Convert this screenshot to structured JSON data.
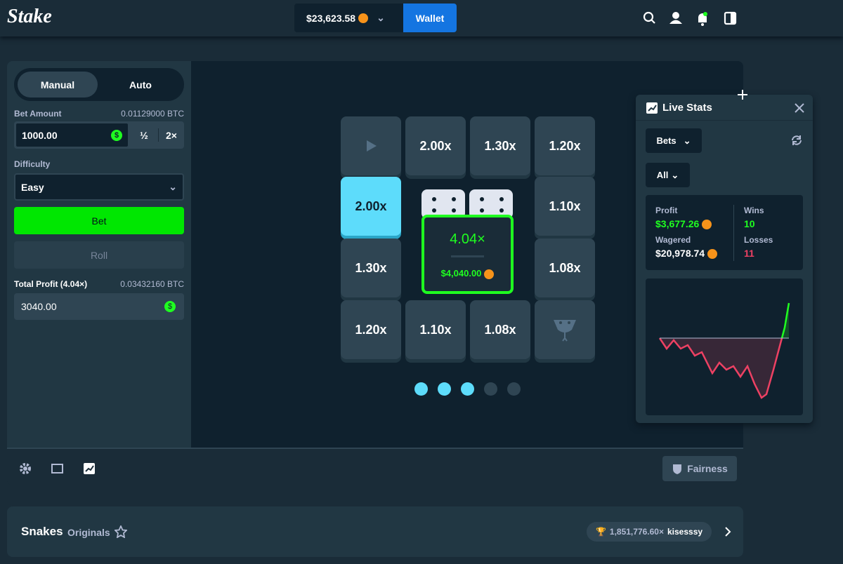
{
  "header": {
    "logo": "Stake",
    "balance": "$23,623.58",
    "wallet": "Wallet"
  },
  "sidebar": {
    "tabs": [
      "Manual",
      "Auto"
    ],
    "bet_amount_label": "Bet Amount",
    "bet_amount_btc": "0.01129000 BTC",
    "bet_amount": "1000.00",
    "half": "½",
    "double": "2×",
    "difficulty_label": "Difficulty",
    "difficulty": "Easy",
    "bet_button": "Bet",
    "roll_button": "Roll",
    "total_profit_label": "Total Profit (4.04×)",
    "total_profit_btc": "0.03432160 BTC",
    "total_profit": "3040.00"
  },
  "board": {
    "tiles": [
      "2.00x",
      "1.30x",
      "1.20x",
      "2.00x",
      "1.10x",
      "1.30x",
      "1.08x",
      "1.20x",
      "1.10x",
      "1.08x"
    ],
    "center": {
      "multiplier": "4.04×",
      "payout": "$4,040.00"
    }
  },
  "live_stats": {
    "title": "Live Stats",
    "bets_dropdown": "Bets",
    "filter": "All",
    "profit_label": "Profit",
    "profit": "$3,677.26",
    "wins_label": "Wins",
    "wins": "10",
    "wagered_label": "Wagered",
    "wagered": "$20,978.74",
    "losses_label": "Losses",
    "losses": "11"
  },
  "footer": {
    "fairness": "Fairness"
  },
  "game_info": {
    "name": "Snakes",
    "category": "Originals",
    "top_multiplier": "1,851,776.60×",
    "top_player": "kisesssy"
  }
}
